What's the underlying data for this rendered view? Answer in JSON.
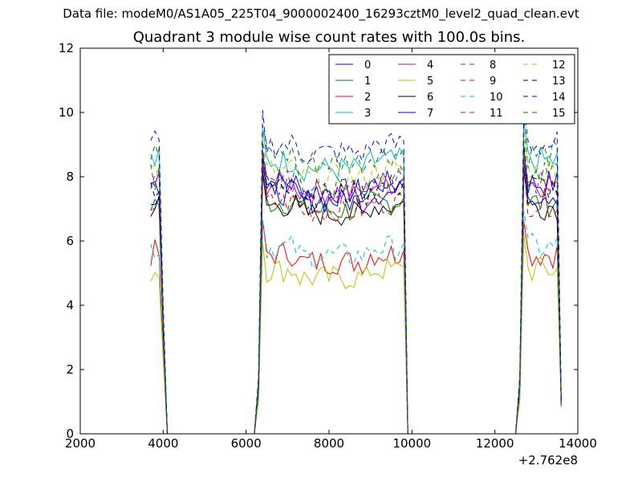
{
  "suptitle": "Data file: modeM0/AS1A05_225T04_9000002400_16293cztM0_level2_quad_clean.evt",
  "chart_data": {
    "type": "line",
    "title": "Quadrant 3 module wise count rates with 100.0s bins.",
    "xlabel": "",
    "ylabel": "",
    "xlim": [
      2000,
      14000
    ],
    "ylim": [
      0,
      12
    ],
    "x_offset_label": "+2.762e8",
    "xticks": [
      2000,
      4000,
      6000,
      8000,
      10000,
      12000,
      14000
    ],
    "xtick_labels": [
      "2000",
      "4000",
      "6000",
      "8000",
      "10000",
      "12000",
      "14000"
    ],
    "yticks": [
      0,
      2,
      4,
      6,
      8,
      10,
      12
    ],
    "ytick_labels": [
      "0",
      "2",
      "4",
      "6",
      "8",
      "10",
      "12"
    ],
    "grid": false,
    "legend_position": "top-right",
    "legend_columns": 4,
    "segments": [
      {
        "name": "seg1",
        "x": [
          3700,
          3800,
          3900,
          4000,
          4100
        ]
      },
      {
        "name": "seg2",
        "x": [
          6200,
          6300,
          6400,
          6500,
          6600,
          6700,
          6800,
          6900,
          7000,
          7100,
          7200,
          7300,
          7400,
          7500,
          7600,
          7700,
          7800,
          7900,
          8000,
          8100,
          8200,
          8300,
          8400,
          8500,
          8600,
          8700,
          8800,
          8900,
          9000,
          9100,
          9200,
          9300,
          9400,
          9500,
          9600,
          9700,
          9800,
          9900
        ]
      },
      {
        "name": "seg3",
        "x": [
          12500,
          12600,
          12700,
          12800,
          12900,
          13000,
          13100,
          13200,
          13300,
          13400,
          13500,
          13600
        ]
      }
    ],
    "series": [
      {
        "name": "0",
        "color": "#0000ff",
        "dash": "solid",
        "level": 7.8
      },
      {
        "name": "1",
        "color": "#008000",
        "dash": "solid",
        "level": 7.2
      },
      {
        "name": "2",
        "color": "#ff0000",
        "dash": "solid",
        "level": 5.6
      },
      {
        "name": "3",
        "color": "#00bfbf",
        "dash": "solid",
        "level": 8.5
      },
      {
        "name": "4",
        "color": "#bf00bf",
        "dash": "solid",
        "level": 7.8
      },
      {
        "name": "5",
        "color": "#bfbf00",
        "dash": "solid",
        "level": 5.1
      },
      {
        "name": "6",
        "color": "#000000",
        "dash": "solid",
        "level": 7.1
      },
      {
        "name": "7",
        "color": "#0000ff",
        "dash": "solid",
        "level": 7.5
      },
      {
        "name": "8",
        "color": "#008000",
        "dash": "dashed",
        "level": 8.7
      },
      {
        "name": "9",
        "color": "#ff0000",
        "dash": "dashed",
        "level": 7.2
      },
      {
        "name": "10",
        "color": "#00bfbf",
        "dash": "dashed",
        "level": 5.8
      },
      {
        "name": "11",
        "color": "#bf00bf",
        "dash": "dashed",
        "level": 7.8
      },
      {
        "name": "12",
        "color": "#bfbf00",
        "dash": "dashed",
        "level": 8.2
      },
      {
        "name": "13",
        "color": "#000000",
        "dash": "dashed",
        "level": 7.7
      },
      {
        "name": "14",
        "color": "#0000ff",
        "dash": "dashed",
        "level": 9.0
      },
      {
        "name": "15",
        "color": "#008000",
        "dash": "dashed",
        "level": 8.0
      }
    ]
  }
}
